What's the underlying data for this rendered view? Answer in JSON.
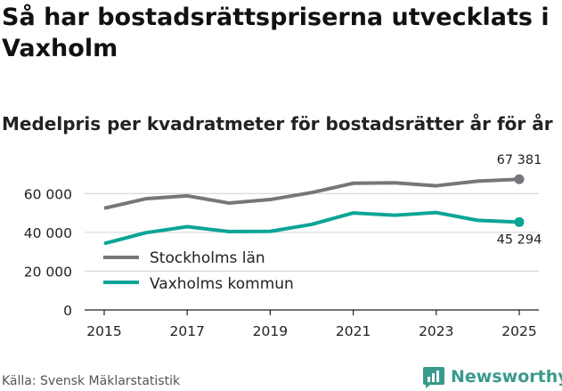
{
  "title": "Så har bostadsrättspriserna utvecklats i Vaxholm",
  "subtitle": "Medelpris per kvadratmeter för bostadsrätter år för år",
  "source": "Källa: Svensk Mäklarstatistik",
  "brand": "Newsworthy",
  "colors": {
    "stockholm": "#77767b",
    "vaxholm": "#0aa596",
    "brand": "#3a9a8c",
    "grid": "#d0d0d0"
  },
  "chart_data": {
    "type": "line",
    "title": "Så har bostadsrättspriserna utvecklats i Vaxholm",
    "subtitle": "Medelpris per kvadratmeter för bostadsrätter år för år",
    "xlabel": "",
    "ylabel": "",
    "x": [
      2015,
      2016,
      2017,
      2018,
      2019,
      2020,
      2021,
      2022,
      2023,
      2024,
      2025
    ],
    "xticks": [
      2015,
      2017,
      2019,
      2021,
      2023,
      2025
    ],
    "ylim": [
      0,
      70000
    ],
    "yticks": [
      0,
      20000,
      40000,
      60000
    ],
    "ytick_labels": [
      "0",
      "20 000",
      "40 000",
      "60 000"
    ],
    "grid": true,
    "legend_position": "bottom-left",
    "series": [
      {
        "name": "Stockholms län",
        "key": "stockholm",
        "values": [
          52400,
          57300,
          58800,
          55100,
          56900,
          60500,
          65300,
          65500,
          64000,
          66400,
          67381
        ],
        "end_label": "67 381"
      },
      {
        "name": "Vaxholms kommun",
        "key": "vaxholm",
        "values": [
          34200,
          39800,
          42900,
          40400,
          40500,
          44100,
          50000,
          48800,
          50200,
          46200,
          45294
        ],
        "end_label": "45 294"
      }
    ]
  }
}
